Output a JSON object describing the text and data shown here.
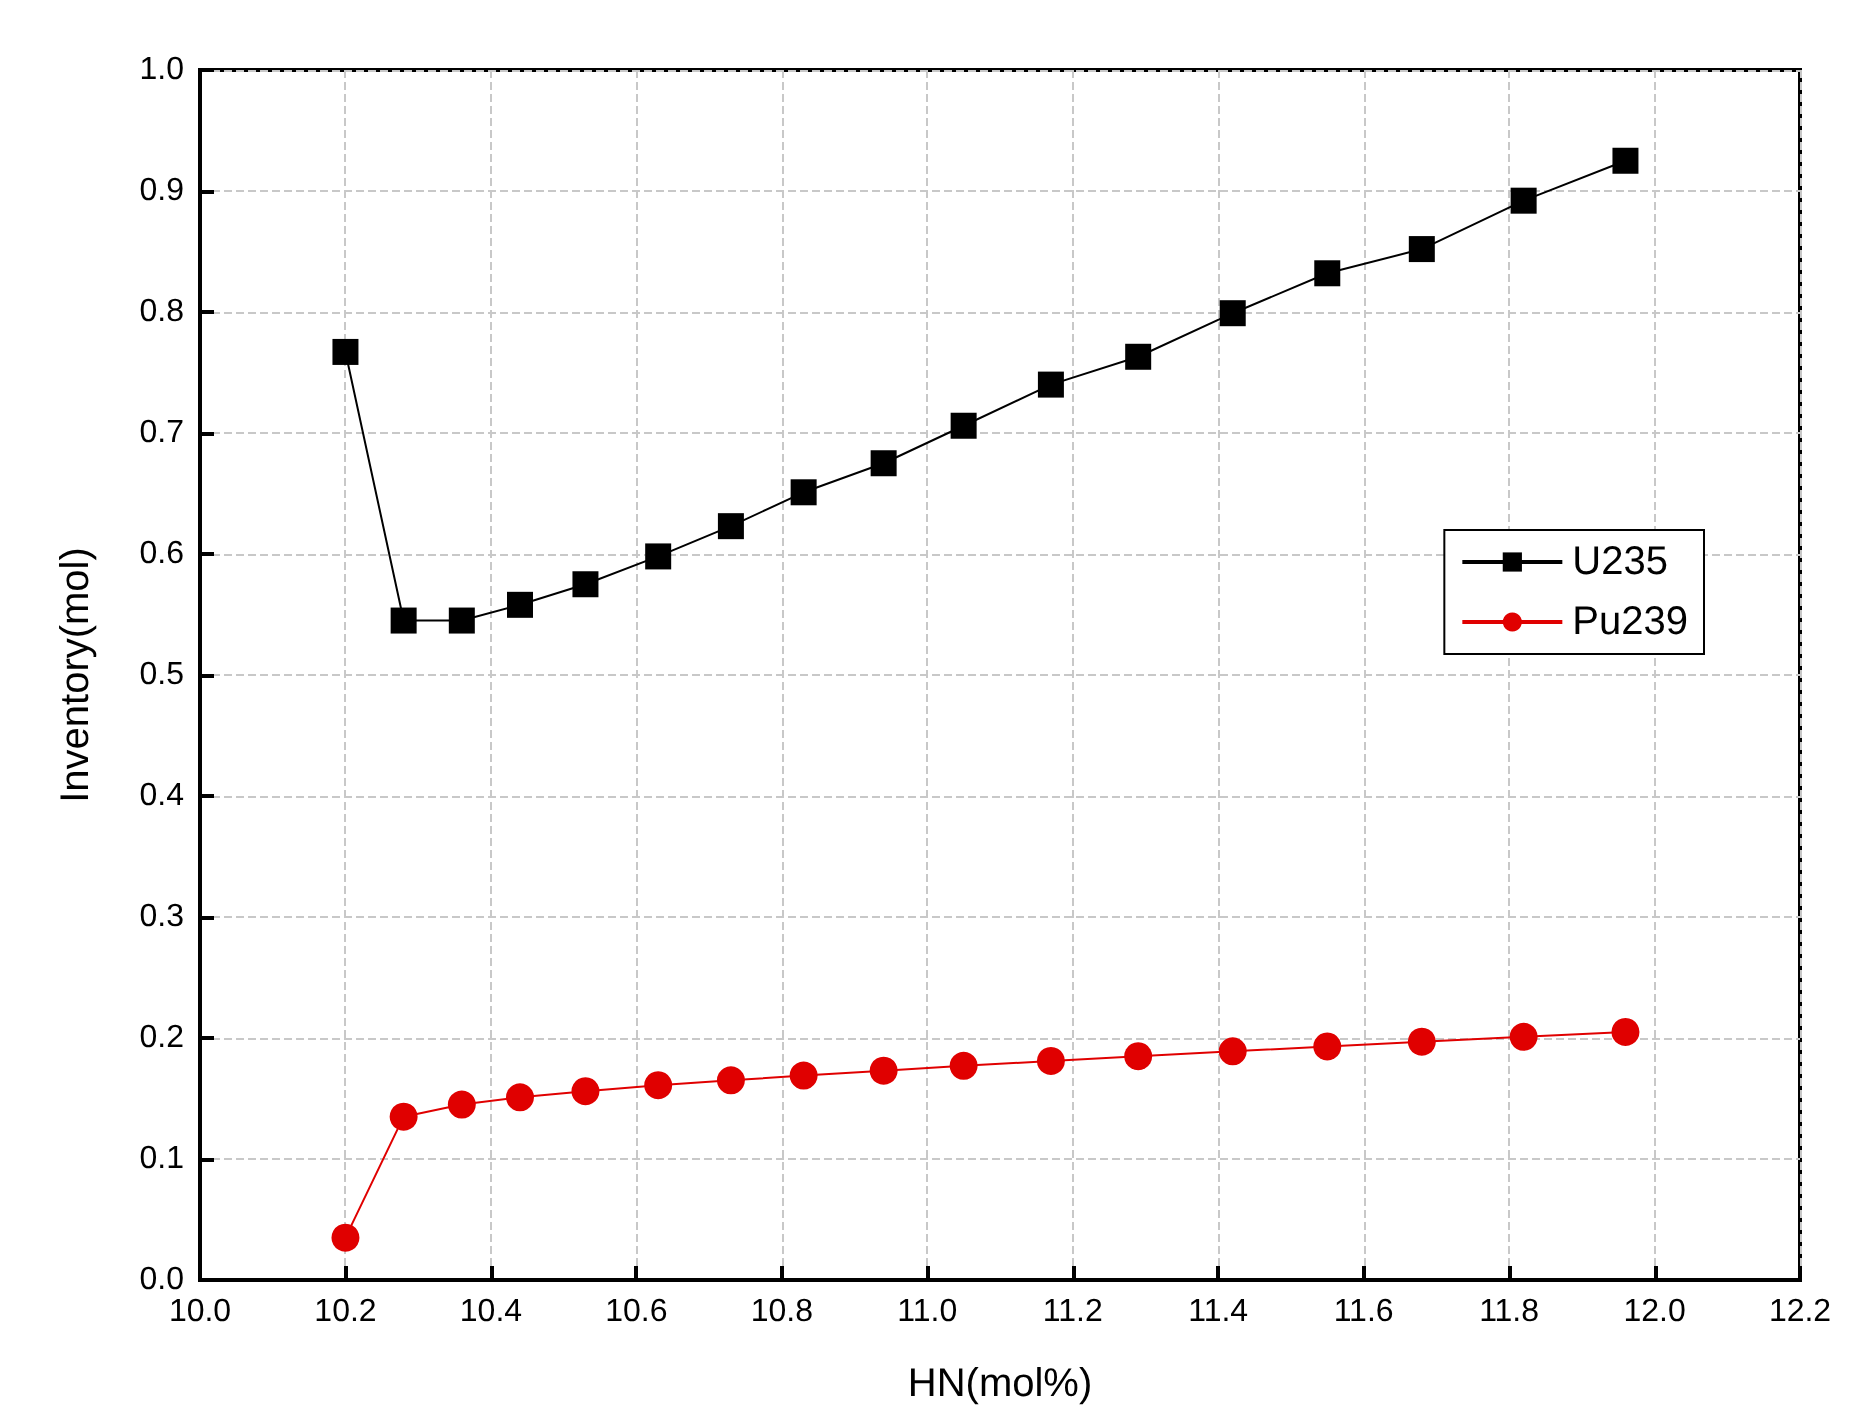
{
  "chart_data": {
    "type": "line",
    "xlabel": "HN(mol%)",
    "ylabel": "Inventory(mol)",
    "x": [
      10.2,
      10.28,
      10.36,
      10.44,
      10.53,
      10.63,
      10.73,
      10.83,
      10.94,
      11.05,
      11.17,
      11.29,
      11.42,
      11.55,
      11.68,
      11.82,
      11.96
    ],
    "series": [
      {
        "name": "U235",
        "color": "#000000",
        "marker": "square",
        "values": [
          0.767,
          0.545,
          0.545,
          0.558,
          0.575,
          0.598,
          0.623,
          0.651,
          0.675,
          0.706,
          0.74,
          0.763,
          0.799,
          0.832,
          0.852,
          0.892,
          0.925
        ]
      },
      {
        "name": "Pu239",
        "color": "#e00000",
        "marker": "circle",
        "values": [
          0.035,
          0.135,
          0.145,
          0.151,
          0.156,
          0.161,
          0.165,
          0.169,
          0.173,
          0.177,
          0.181,
          0.185,
          0.189,
          0.193,
          0.197,
          0.201,
          0.205
        ]
      }
    ],
    "xlim": [
      10.0,
      12.2
    ],
    "xticks": [
      {
        "value": 10.0,
        "label": "10.0"
      },
      10.2,
      10.4,
      10.6,
      10.8,
      {
        "value": 11.0,
        "label": "11.0"
      },
      11.2,
      11.4,
      11.6,
      11.8,
      {
        "value": 12.0,
        "label": "12.0"
      },
      12.2
    ],
    "ylim": [
      0.0,
      1.0
    ],
    "yticks": [
      {
        "value": 0,
        "label": "0.0"
      },
      0.1,
      0.2,
      0.3,
      0.4,
      0.5,
      0.6,
      0.7,
      0.8,
      0.9,
      {
        "value": 1,
        "label": "1.0"
      }
    ],
    "grid": true,
    "legend": "right",
    "line_style": "solid"
  }
}
